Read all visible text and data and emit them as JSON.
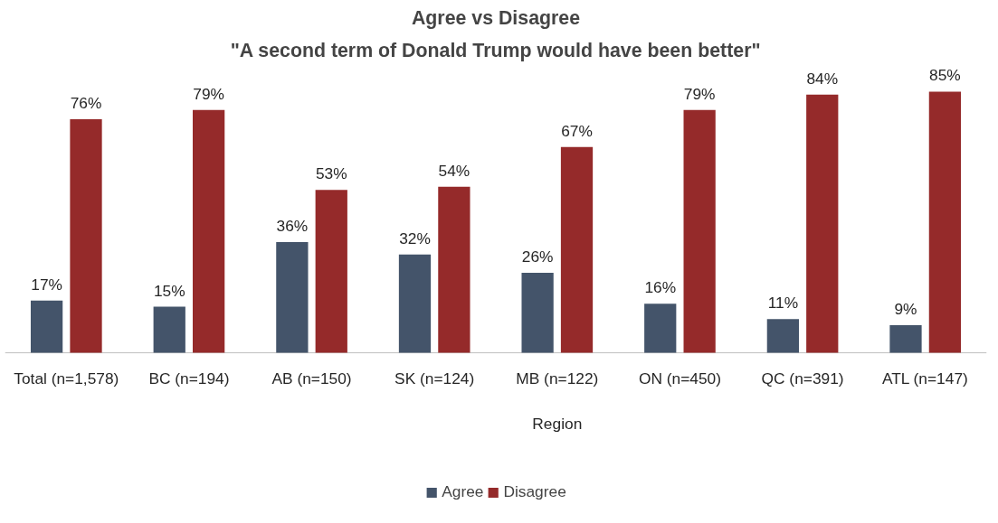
{
  "chart_data": {
    "type": "bar",
    "title": "Agree vs Disagree",
    "subtitle": "\"A second term of Donald Trump would have been better\"",
    "categories": [
      "Total (n=1,578)",
      "BC (n=194)",
      "AB (n=150)",
      "SK (n=124)",
      "MB (n=122)",
      "ON (n=450)",
      "QC (n=391)",
      "ATL (n=147)"
    ],
    "series": [
      {
        "name": "Agree",
        "color": "#44546a",
        "values": [
          17,
          15,
          36,
          32,
          26,
          16,
          11,
          9
        ],
        "value_labels": [
          "17%",
          "15%",
          "36%",
          "32%",
          "26%",
          "16%",
          "11%",
          "9%"
        ]
      },
      {
        "name": "Disagree",
        "color": "#952a2a",
        "values": [
          76,
          79,
          53,
          54,
          67,
          79,
          84,
          85
        ],
        "value_labels": [
          "76%",
          "79%",
          "53%",
          "54%",
          "67%",
          "79%",
          "84%",
          "85%"
        ]
      }
    ],
    "annotations": [
      "Region"
    ],
    "legend": "bottom"
  }
}
